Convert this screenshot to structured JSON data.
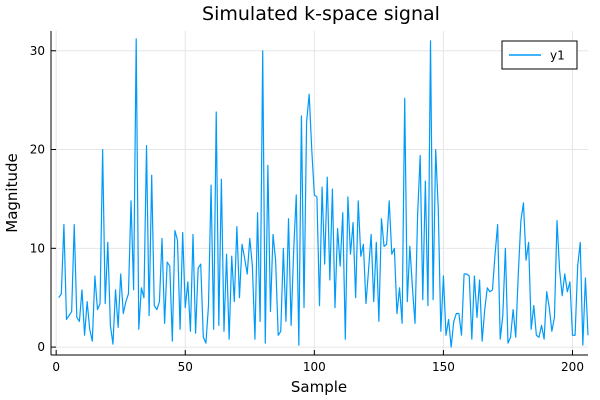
{
  "chart_data": {
    "type": "line",
    "title": "Simulated k-space signal",
    "xlabel": "Sample",
    "ylabel": "Magnitude",
    "xlim": [
      -2,
      206
    ],
    "ylim": [
      -0.8,
      32
    ],
    "x_ticks": [
      0,
      50,
      100,
      150,
      200
    ],
    "y_ticks": [
      0,
      10,
      20,
      30
    ],
    "grid": true,
    "legend_position": "top-right",
    "series": [
      {
        "name": "y1",
        "color": "#009af9",
        "x_start": 1,
        "values": [
          5.0,
          5.4,
          12.4,
          2.8,
          3.2,
          3.6,
          12.4,
          3.0,
          2.6,
          5.8,
          1.2,
          4.6,
          1.8,
          0.6,
          7.2,
          3.8,
          4.4,
          20.0,
          4.4,
          10.6,
          2.2,
          0.3,
          5.8,
          2.0,
          7.4,
          3.4,
          4.6,
          5.4,
          14.8,
          5.8,
          31.2,
          1.8,
          6.0,
          5.0,
          20.4,
          3.2,
          17.4,
          4.2,
          3.8,
          4.6,
          11.0,
          2.4,
          8.6,
          8.2,
          0.6,
          11.8,
          10.8,
          1.8,
          11.6,
          4.0,
          6.6,
          1.6,
          11.4,
          1.4,
          8.0,
          8.4,
          1.0,
          0.4,
          4.2,
          16.4,
          1.8,
          23.8,
          2.2,
          17.0,
          1.6,
          9.4,
          0.8,
          9.2,
          4.6,
          12.2,
          5.0,
          10.4,
          9.0,
          7.4,
          11.0,
          8.2,
          0.8,
          13.6,
          2.6,
          30.0,
          0.4,
          18.4,
          3.6,
          11.4,
          8.8,
          1.2,
          1.6,
          10.0,
          2.6,
          13.0,
          2.2,
          9.8,
          15.4,
          0.2,
          23.4,
          4.0,
          22.8,
          25.6,
          20.0,
          15.4,
          15.2,
          4.2,
          16.2,
          8.4,
          17.2,
          6.8,
          16.0,
          4.0,
          12.0,
          8.2,
          13.6,
          0.8,
          15.2,
          9.4,
          12.6,
          5.0,
          14.8,
          9.2,
          10.4,
          4.4,
          7.8,
          11.4,
          4.6,
          10.6,
          2.6,
          13.0,
          10.2,
          10.4,
          14.8,
          9.4,
          10.0,
          3.4,
          6.0,
          2.4,
          25.2,
          4.6,
          10.2,
          6.0,
          2.4,
          13.4,
          19.4,
          4.8,
          16.8,
          4.2,
          31.0,
          4.8,
          20.0,
          14.0,
          1.6,
          7.2,
          1.2,
          2.8,
          0.0,
          2.6,
          3.4,
          3.4,
          1.2,
          7.4,
          7.4,
          7.2,
          0.8,
          7.2,
          3.0,
          6.8,
          0.6,
          3.8,
          6.0,
          5.6,
          5.8,
          9.4,
          12.4,
          0.8,
          3.2,
          10.0,
          0.4,
          1.0,
          3.8,
          1.0,
          7.4,
          12.8,
          14.6,
          8.8,
          10.6,
          1.8,
          4.2,
          1.2,
          1.0,
          2.2,
          0.8,
          5.6,
          4.0,
          1.6,
          3.0,
          12.8,
          7.8,
          5.2,
          7.4,
          5.6,
          6.6,
          1.2,
          1.2,
          8.2,
          10.6,
          0.2,
          7.0,
          1.2
        ]
      }
    ]
  }
}
